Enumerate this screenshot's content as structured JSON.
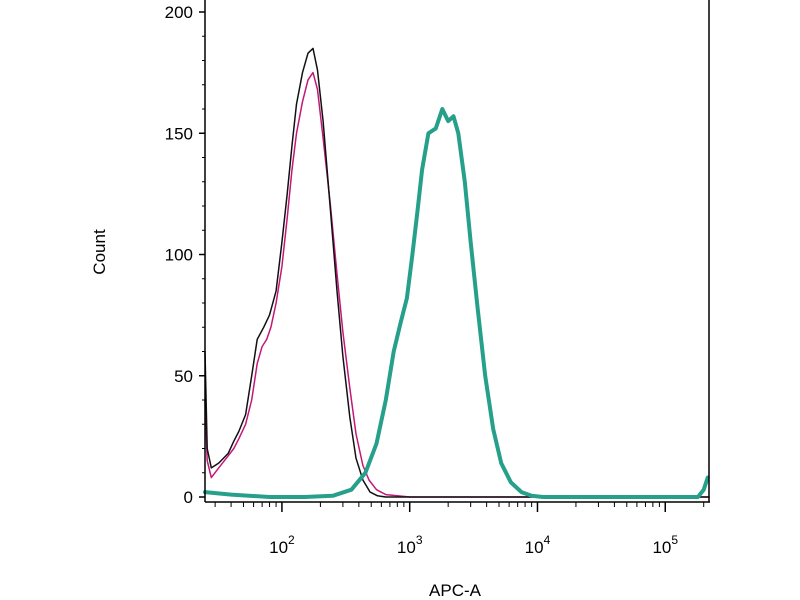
{
  "chart_data": {
    "type": "line",
    "title": "",
    "xlabel": "APC-A",
    "ylabel": "Count",
    "x_scale": "log",
    "xlim": [
      25,
      220000
    ],
    "ylim": [
      0,
      200
    ],
    "y_ticks": [
      0,
      50,
      100,
      150,
      200
    ],
    "x_ticks": [
      {
        "value": 100,
        "base": "10",
        "exp": "2"
      },
      {
        "value": 1000,
        "base": "10",
        "exp": "3"
      },
      {
        "value": 10000,
        "base": "10",
        "exp": "4"
      },
      {
        "value": 100000,
        "base": "10",
        "exp": "5"
      }
    ],
    "grid": false,
    "legend": "none",
    "series": [
      {
        "color": "#c2187a",
        "stroke": 1.5,
        "points": [
          [
            25,
            40
          ],
          [
            26,
            15
          ],
          [
            28,
            8
          ],
          [
            32,
            12
          ],
          [
            38,
            17
          ],
          [
            42,
            20
          ],
          [
            46,
            24
          ],
          [
            52,
            30
          ],
          [
            58,
            40
          ],
          [
            64,
            55
          ],
          [
            70,
            62
          ],
          [
            76,
            65
          ],
          [
            82,
            70
          ],
          [
            90,
            80
          ],
          [
            100,
            95
          ],
          [
            110,
            115
          ],
          [
            120,
            135
          ],
          [
            130,
            150
          ],
          [
            145,
            163
          ],
          [
            160,
            172
          ],
          [
            175,
            175
          ],
          [
            190,
            168
          ],
          [
            210,
            148
          ],
          [
            240,
            120
          ],
          [
            270,
            92
          ],
          [
            300,
            68
          ],
          [
            340,
            45
          ],
          [
            380,
            26
          ],
          [
            430,
            13
          ],
          [
            480,
            7
          ],
          [
            550,
            3
          ],
          [
            650,
            1
          ],
          [
            800,
            0.5
          ],
          [
            1000,
            0
          ],
          [
            220000,
            0
          ]
        ]
      },
      {
        "color": "#111111",
        "stroke": 1.5,
        "points": [
          [
            25,
            60
          ],
          [
            26,
            20
          ],
          [
            28,
            12
          ],
          [
            32,
            14
          ],
          [
            38,
            18
          ],
          [
            42,
            23
          ],
          [
            46,
            27
          ],
          [
            52,
            34
          ],
          [
            58,
            50
          ],
          [
            64,
            65
          ],
          [
            72,
            70
          ],
          [
            80,
            75
          ],
          [
            90,
            85
          ],
          [
            100,
            105
          ],
          [
            110,
            125
          ],
          [
            120,
            145
          ],
          [
            130,
            162
          ],
          [
            145,
            175
          ],
          [
            160,
            183
          ],
          [
            175,
            185
          ],
          [
            190,
            176
          ],
          [
            210,
            155
          ],
          [
            240,
            118
          ],
          [
            270,
            85
          ],
          [
            300,
            58
          ],
          [
            340,
            33
          ],
          [
            380,
            16
          ],
          [
            430,
            7
          ],
          [
            490,
            2
          ],
          [
            560,
            0.5
          ],
          [
            650,
            0
          ],
          [
            220000,
            0
          ]
        ]
      },
      {
        "color": "#26a08a",
        "stroke": 4,
        "points": [
          [
            25,
            2
          ],
          [
            40,
            1
          ],
          [
            80,
            0
          ],
          [
            150,
            0
          ],
          [
            250,
            0.5
          ],
          [
            350,
            3
          ],
          [
            450,
            10
          ],
          [
            550,
            22
          ],
          [
            650,
            40
          ],
          [
            750,
            60
          ],
          [
            850,
            72
          ],
          [
            950,
            82
          ],
          [
            1050,
            100
          ],
          [
            1150,
            118
          ],
          [
            1250,
            135
          ],
          [
            1400,
            150
          ],
          [
            1600,
            152
          ],
          [
            1800,
            160
          ],
          [
            2000,
            155
          ],
          [
            2200,
            157
          ],
          [
            2400,
            150
          ],
          [
            2700,
            130
          ],
          [
            3000,
            105
          ],
          [
            3400,
            78
          ],
          [
            3900,
            50
          ],
          [
            4500,
            28
          ],
          [
            5200,
            14
          ],
          [
            6200,
            6
          ],
          [
            7500,
            2
          ],
          [
            9000,
            0.5
          ],
          [
            11000,
            0
          ],
          [
            180000,
            0
          ],
          [
            200000,
            3
          ],
          [
            215000,
            8
          ]
        ]
      }
    ]
  }
}
